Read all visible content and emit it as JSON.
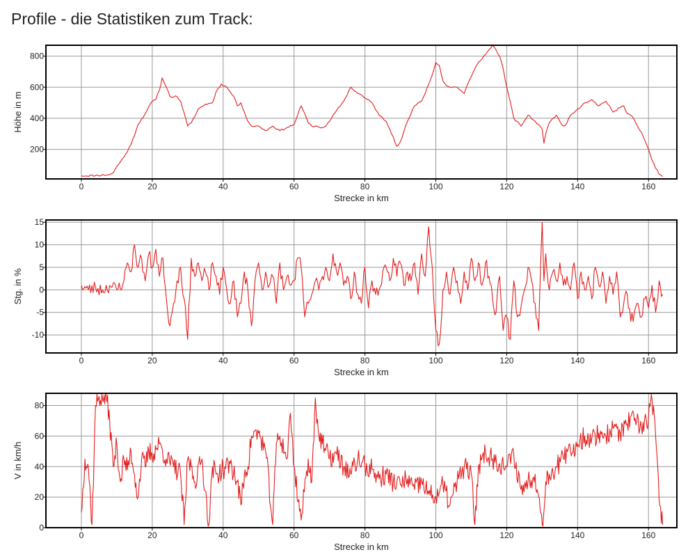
{
  "page": {
    "heading": "Profile - die Statistiken zum Track:"
  },
  "colors": {
    "line": "#e31b1b",
    "grid": "#999999",
    "frame": "#000000"
  },
  "chart_data": [
    {
      "type": "line",
      "xlabel": "Strecke in km",
      "ylabel": "Höhe in m",
      "xlim": [
        -10,
        168
      ],
      "ylim": [
        10,
        870
      ],
      "xticks": [
        0,
        20,
        40,
        60,
        80,
        100,
        120,
        140,
        160
      ],
      "yticks": [
        200,
        400,
        600,
        800
      ],
      "grid": true,
      "series": [
        {
          "x": [
            0,
            4,
            8,
            9,
            10,
            12,
            14,
            16,
            18,
            20,
            21,
            22,
            22.8,
            24,
            25,
            27,
            28,
            30,
            31,
            33,
            35,
            37,
            38,
            39.5,
            41,
            43,
            44,
            45,
            46,
            47,
            48,
            50,
            52,
            54,
            56,
            58,
            60,
            61,
            62,
            63,
            64,
            65,
            66,
            68,
            69,
            70,
            72,
            74,
            76,
            78,
            79,
            80,
            82,
            84,
            86,
            88,
            89,
            90,
            92,
            94,
            96,
            98,
            99,
            100,
            101,
            102,
            103,
            104,
            106,
            108,
            109,
            110,
            112,
            114,
            116,
            117,
            118,
            119,
            120,
            122,
            124,
            126,
            128,
            129,
            130,
            130.5,
            131,
            132,
            133,
            134,
            135,
            136,
            137,
            138,
            140,
            142,
            144,
            145,
            146,
            148,
            149,
            150,
            151,
            152,
            153,
            154,
            155,
            156,
            158,
            160,
            161,
            162,
            163,
            164
          ],
          "y": [
            30,
            32,
            38,
            50,
            90,
            150,
            230,
            360,
            430,
            510,
            520,
            580,
            660,
            600,
            540,
            540,
            510,
            350,
            370,
            460,
            490,
            500,
            570,
            620,
            600,
            540,
            480,
            500,
            440,
            380,
            350,
            350,
            320,
            350,
            320,
            340,
            360,
            420,
            480,
            430,
            370,
            350,
            350,
            340,
            350,
            380,
            450,
            510,
            600,
            560,
            550,
            530,
            500,
            420,
            380,
            280,
            220,
            250,
            380,
            480,
            510,
            620,
            680,
            760,
            740,
            640,
            610,
            600,
            600,
            560,
            620,
            670,
            760,
            810,
            870,
            840,
            800,
            720,
            600,
            400,
            350,
            420,
            380,
            360,
            330,
            240,
            300,
            370,
            400,
            420,
            380,
            350,
            370,
            420,
            460,
            500,
            520,
            500,
            480,
            510,
            480,
            440,
            450,
            470,
            480,
            430,
            420,
            390,
            310,
            200,
            130,
            80,
            40,
            25
          ]
        }
      ]
    },
    {
      "type": "line",
      "xlabel": "Strecke in km",
      "ylabel": "Stg. in %",
      "xlim": [
        -10,
        168
      ],
      "ylim": [
        -14,
        15.5
      ],
      "xticks": [
        0,
        20,
        40,
        60,
        80,
        100,
        120,
        140,
        160
      ],
      "yticks": [
        -10,
        -5,
        0,
        5,
        10,
        15
      ],
      "grid": true,
      "series": [
        {
          "x": [
            0,
            2,
            4,
            6,
            8,
            10,
            12,
            13,
            14,
            15,
            16,
            17,
            18,
            19,
            20,
            21,
            22,
            23,
            24,
            25,
            26,
            27,
            28,
            29,
            30,
            31,
            32,
            33,
            34,
            35,
            36,
            37,
            38,
            39,
            40,
            41,
            42,
            43,
            44,
            45,
            46,
            47,
            48,
            49,
            50,
            51,
            52,
            53,
            54,
            55,
            56,
            57,
            58,
            59,
            60,
            61,
            62,
            63,
            64,
            65,
            66,
            67,
            68,
            69,
            70,
            71,
            72,
            73,
            74,
            75,
            76,
            77,
            78,
            79,
            80,
            81,
            82,
            83,
            84,
            85,
            86,
            87,
            88,
            89,
            90,
            91,
            92,
            93,
            94,
            95,
            96,
            97,
            98,
            99,
            100,
            101,
            102,
            103,
            104,
            105,
            106,
            107,
            108,
            109,
            110,
            111,
            112,
            113,
            114,
            115,
            116,
            117,
            118,
            119,
            120,
            121,
            122,
            123,
            124,
            125,
            126,
            127,
            128,
            129,
            130,
            130.5,
            131,
            132,
            133,
            134,
            135,
            136,
            137,
            138,
            139,
            140,
            141,
            142,
            143,
            144,
            145,
            146,
            147,
            148,
            149,
            150,
            151,
            152,
            153,
            154,
            155,
            156,
            157,
            158,
            159,
            160,
            161,
            162,
            163,
            164
          ],
          "y": [
            1,
            0,
            0.5,
            0,
            1,
            0,
            2,
            6,
            4,
            10,
            5,
            7,
            2,
            8,
            5,
            9,
            3,
            7,
            -2,
            -8,
            -3,
            2,
            5,
            -2,
            -11,
            7,
            3,
            6,
            2,
            4,
            0,
            6,
            3,
            -1,
            5,
            0,
            -3,
            2,
            -6,
            -3,
            4,
            0,
            -8,
            2,
            6,
            0,
            4,
            1,
            3,
            -3,
            6,
            0,
            3,
            1,
            2,
            7,
            5,
            -6,
            -3,
            -1,
            2,
            0,
            3,
            5,
            2,
            8,
            4,
            6,
            1,
            3,
            -2,
            4,
            -1,
            -3,
            5,
            -4,
            2,
            -1,
            0,
            4,
            5,
            2,
            7,
            3,
            6,
            1,
            4,
            2,
            6,
            -1,
            8,
            3,
            14,
            5,
            -9,
            -12,
            0,
            4,
            -1,
            5,
            2,
            -3,
            4,
            0,
            7,
            2,
            6,
            1,
            6,
            3,
            -2,
            -5,
            3,
            -9,
            -6,
            -11,
            2,
            -6,
            -4,
            0,
            5,
            2,
            -3,
            -9,
            15,
            2,
            8,
            0,
            4,
            2,
            6,
            1,
            3,
            0,
            6,
            -2,
            4,
            0,
            3,
            -2,
            5,
            1,
            4,
            -3,
            3,
            -1,
            4,
            -6,
            -3,
            -1,
            -7,
            -5,
            -3,
            -6,
            -2,
            -4,
            1,
            -5,
            2,
            -1
          ],
          "note_noise": ""
        }
      ]
    },
    {
      "type": "line",
      "xlabel": "Strecke in km",
      "ylabel": "V in km/h",
      "xlim": [
        -10,
        168
      ],
      "ylim": [
        0,
        88
      ],
      "xticks": [
        0,
        20,
        40,
        60,
        80,
        100,
        120,
        140,
        160
      ],
      "yticks": [
        0,
        20,
        40,
        60,
        80
      ],
      "grid": true,
      "series": [
        {
          "x": [
            0,
            1,
            2,
            3,
            4,
            5,
            6,
            7,
            8,
            9,
            10,
            11,
            12,
            13,
            14,
            15,
            16,
            17,
            18,
            19,
            20,
            22,
            24,
            26,
            28,
            29,
            30,
            31,
            32,
            34,
            36,
            37,
            38,
            40,
            42,
            44,
            45,
            46,
            47,
            48,
            50,
            52,
            54,
            55,
            56,
            58,
            59,
            60,
            62,
            64,
            65,
            66,
            67,
            68,
            70,
            72,
            74,
            76,
            78,
            80,
            82,
            84,
            86,
            88,
            90,
            92,
            94,
            96,
            98,
            100,
            102,
            104,
            106,
            108,
            110,
            111,
            112,
            113,
            114,
            116,
            118,
            120,
            122,
            124,
            126,
            128,
            129,
            130,
            131,
            132,
            134,
            136,
            138,
            140,
            142,
            144,
            146,
            148,
            150,
            152,
            154,
            156,
            158,
            160,
            161,
            162,
            163,
            164
          ],
          "y": [
            10,
            45,
            40,
            2,
            80,
            86,
            84,
            87,
            70,
            40,
            55,
            30,
            45,
            38,
            50,
            35,
            20,
            45,
            40,
            50,
            48,
            55,
            45,
            40,
            35,
            2,
            45,
            40,
            30,
            45,
            2,
            40,
            35,
            38,
            42,
            30,
            15,
            35,
            40,
            60,
            62,
            50,
            2,
            55,
            60,
            45,
            75,
            40,
            5,
            45,
            30,
            85,
            60,
            55,
            45,
            48,
            40,
            35,
            45,
            40,
            38,
            32,
            35,
            30,
            28,
            32,
            25,
            30,
            22,
            20,
            28,
            15,
            30,
            40,
            35,
            2,
            40,
            45,
            50,
            45,
            42,
            40,
            48,
            25,
            30,
            35,
            20,
            2,
            30,
            35,
            40,
            45,
            50,
            55,
            60,
            58,
            62,
            60,
            65,
            62,
            68,
            70,
            66,
            72,
            84,
            60,
            18,
            2
          ]
        }
      ]
    }
  ]
}
